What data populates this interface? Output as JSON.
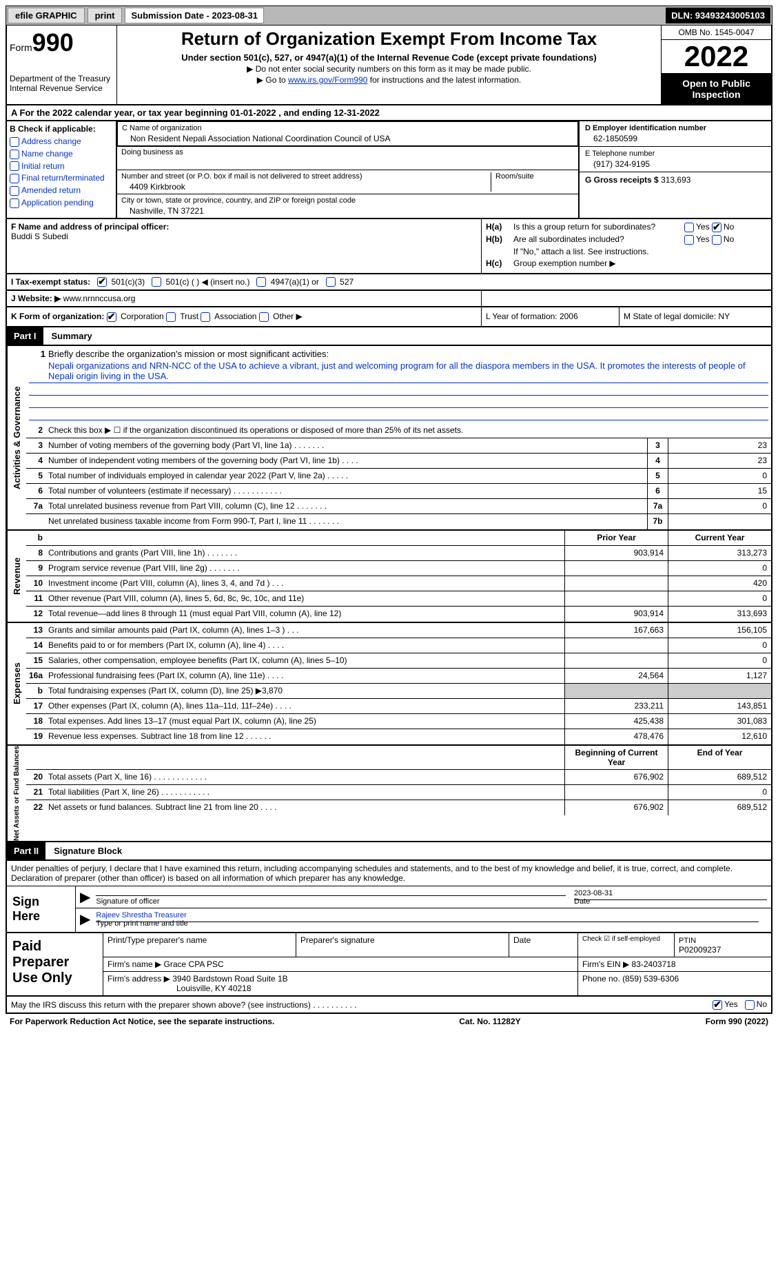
{
  "topbar": {
    "efile": "efile GRAPHIC",
    "print": "print",
    "submission_label": "Submission Date - 2023-08-31",
    "dln_label": "DLN: 93493243005103"
  },
  "header": {
    "form_prefix": "Form",
    "form_number": "990",
    "dept": "Department of the Treasury",
    "irs": "Internal Revenue Service",
    "title": "Return of Organization Exempt From Income Tax",
    "subtitle": "Under section 501(c), 527, or 4947(a)(1) of the Internal Revenue Code (except private foundations)",
    "note1": "▶ Do not enter social security numbers on this form as it may be made public.",
    "note2_pre": "▶ Go to ",
    "note2_link": "www.irs.gov/Form990",
    "note2_post": " for instructions and the latest information.",
    "omb": "OMB No. 1545-0047",
    "year": "2022",
    "open": "Open to Public Inspection"
  },
  "section_a": "A For the 2022 calendar year, or tax year beginning 01-01-2022    , and ending 12-31-2022",
  "col_b": {
    "label": "B Check if applicable:",
    "items": [
      "Address change",
      "Name change",
      "Initial return",
      "Final return/terminated",
      "Amended return",
      "Application pending"
    ]
  },
  "col_c": {
    "name_label": "C Name of organization",
    "name": "Non Resident Nepali Association National Coordination Council of USA",
    "dba_label": "Doing business as",
    "street_label": "Number and street (or P.O. box if mail is not delivered to street address)",
    "room_label": "Room/suite",
    "street": "4409 Kirkbrook",
    "city_label": "City or town, state or province, country, and ZIP or foreign postal code",
    "city": "Nashville, TN  37221"
  },
  "col_d": {
    "ein_label": "D Employer identification number",
    "ein": "62-1850599",
    "phone_label": "E Telephone number",
    "phone": "(917) 324-9195",
    "gross_label": "G Gross receipts $",
    "gross": "313,693"
  },
  "col_f": {
    "label": "F Name and address of principal officer:",
    "name": "Buddi S Subedi"
  },
  "col_h": {
    "ha_label": "H(a)",
    "ha_text": "Is this a group return for subordinates?",
    "hb_label": "H(b)",
    "hb_text": "Are all subordinates included?",
    "hb_note": "If \"No,\" attach a list. See instructions.",
    "hc_label": "H(c)",
    "hc_text": "Group exemption number ▶",
    "yes": "Yes",
    "no": "No"
  },
  "status": {
    "label": "I    Tax-exempt status:",
    "c3": "501(c)(3)",
    "c_other": "501(c) (   ) ◀ (insert no.)",
    "a1": "4947(a)(1) or",
    "s527": "527"
  },
  "website": {
    "label": "J   Website: ▶",
    "url": "www.nrnnccusa.org"
  },
  "klm": {
    "k_label": "K Form of organization:",
    "k_corp": "Corporation",
    "k_trust": "Trust",
    "k_assoc": "Association",
    "k_other": "Other ▶",
    "l": "L Year of formation: 2006",
    "m": "M State of legal domicile: NY"
  },
  "part1": {
    "header": "Part I",
    "title": "Summary"
  },
  "summary": {
    "line1_label": "Briefly describe the organization's mission or most significant activities:",
    "mission": "Nepali organizations and NRN-NCC of the USA to achieve a vibrant, just and welcoming program for all the diaspora members in the USA. It promotes the interests of people of Nepali origin living in the USA.",
    "line2": "Check this box ▶ ☐ if the organization discontinued its operations or disposed of more than 25% of its net assets.",
    "lines": [
      {
        "n": "3",
        "t": "Number of voting members of the governing body (Part VI, line 1a)   .    .    .    .    .    .    .",
        "b": "3",
        "v": "23"
      },
      {
        "n": "4",
        "t": "Number of independent voting members of the governing body (Part VI, line 1b)   .    .    .    .",
        "b": "4",
        "v": "23"
      },
      {
        "n": "5",
        "t": "Total number of individuals employed in calendar year 2022 (Part V, line 2a)   .    .    .    .    .",
        "b": "5",
        "v": "0"
      },
      {
        "n": "6",
        "t": "Total number of volunteers (estimate if necessary)    .    .    .    .    .    .    .    .    .    .    .",
        "b": "6",
        "v": "15"
      },
      {
        "n": "7a",
        "t": "Total unrelated business revenue from Part VIII, column (C), line 12   .    .    .    .    .    .    .",
        "b": "7a",
        "v": "0"
      },
      {
        "n": "",
        "t": "Net unrelated business taxable income from Form 990-T, Part I, line 11   .    .    .    .    .    .    .",
        "b": "7b",
        "v": ""
      }
    ],
    "prior_label": "Prior Year",
    "current_label": "Current Year",
    "revenue": [
      {
        "n": "8",
        "t": "Contributions and grants (Part VIII, line 1h)   .    .    .    .    .    .    .",
        "p": "903,914",
        "c": "313,273"
      },
      {
        "n": "9",
        "t": "Program service revenue (Part VIII, line 2g)   .    .    .    .    .    .    .",
        "p": "",
        "c": "0"
      },
      {
        "n": "10",
        "t": "Investment income (Part VIII, column (A), lines 3, 4, and 7d )   .    .    .",
        "p": "",
        "c": "420"
      },
      {
        "n": "11",
        "t": "Other revenue (Part VIII, column (A), lines 5, 6d, 8c, 9c, 10c, and 11e)",
        "p": "",
        "c": "0"
      },
      {
        "n": "12",
        "t": "Total revenue—add lines 8 through 11 (must equal Part VIII, column (A), line 12)",
        "p": "903,914",
        "c": "313,693"
      }
    ],
    "expenses": [
      {
        "n": "13",
        "t": "Grants and similar amounts paid (Part IX, column (A), lines 1–3 )   .    .    .",
        "p": "167,663",
        "c": "156,105"
      },
      {
        "n": "14",
        "t": "Benefits paid to or for members (Part IX, column (A), line 4)   .    .    .    .",
        "p": "",
        "c": "0"
      },
      {
        "n": "15",
        "t": "Salaries, other compensation, employee benefits (Part IX, column (A), lines 5–10)",
        "p": "",
        "c": "0"
      },
      {
        "n": "16a",
        "t": "Professional fundraising fees (Part IX, column (A), line 11e)   .    .    .    .",
        "p": "24,564",
        "c": "1,127"
      },
      {
        "n": "b",
        "t": "Total fundraising expenses (Part IX, column (D), line 25) ▶3,870",
        "p": "shaded",
        "c": "shaded"
      },
      {
        "n": "17",
        "t": "Other expenses (Part IX, column (A), lines 11a–11d, 11f–24e)   .    .    .    .",
        "p": "233,211",
        "c": "143,851"
      },
      {
        "n": "18",
        "t": "Total expenses. Add lines 13–17 (must equal Part IX, column (A), line 25)",
        "p": "425,438",
        "c": "301,083"
      },
      {
        "n": "19",
        "t": "Revenue less expenses. Subtract line 18 from line 12   .    .    .    .    .    .",
        "p": "478,476",
        "c": "12,610"
      }
    ],
    "begin_label": "Beginning of Current Year",
    "end_label": "End of Year",
    "netassets": [
      {
        "n": "20",
        "t": "Total assets (Part X, line 16)   .    .    .    .    .    .    .    .    .    .    .    .",
        "p": "676,902",
        "c": "689,512"
      },
      {
        "n": "21",
        "t": "Total liabilities (Part X, line 26)   .    .    .    .    .    .    .    .    .    .    .",
        "p": "",
        "c": "0"
      },
      {
        "n": "22",
        "t": "Net assets or fund balances. Subtract line 21 from line 20   .    .    .    .",
        "p": "676,902",
        "c": "689,512"
      }
    ],
    "vtabs": {
      "gov": "Activities & Governance",
      "rev": "Revenue",
      "exp": "Expenses",
      "net": "Net Assets or Fund Balances"
    }
  },
  "part2": {
    "header": "Part II",
    "title": "Signature Block",
    "declaration": "Under penalties of perjury, I declare that I have examined this return, including accompanying schedules and statements, and to the best of my knowledge and belief, it is true, correct, and complete. Declaration of preparer (other than officer) is based on all information of which preparer has any knowledge.",
    "sign_here": "Sign Here",
    "sig_officer": "Signature of officer",
    "date_label": "Date",
    "date": "2023-08-31",
    "name_title": "Rajeev Shrestha  Treasurer",
    "name_label": "Type or print name and title"
  },
  "preparer": {
    "label": "Paid Preparer Use Only",
    "print_name": "Print/Type preparer's name",
    "sig": "Preparer's signature",
    "date": "Date",
    "check_self": "Check ☑ if self-employed",
    "ptin_label": "PTIN",
    "ptin": "P02009237",
    "firm_name_label": "Firm's name    ▶",
    "firm_name": "Grace CPA PSC",
    "firm_ein_label": "Firm's EIN ▶",
    "firm_ein": "83-2403718",
    "firm_addr_label": "Firm's address ▶",
    "firm_addr1": "3940 Bardstown Road Suite 1B",
    "firm_addr2": "Louisville, KY  40218",
    "phone_label": "Phone no.",
    "phone": "(859) 539-6306"
  },
  "bottom": {
    "discuss": "May the IRS discuss this return with the preparer shown above? (see instructions)   .    .    .    .    .    .    .    .    .    .",
    "yes": "Yes",
    "no": "No"
  },
  "footer": {
    "left": "For Paperwork Reduction Act Notice, see the separate instructions.",
    "mid": "Cat. No. 11282Y",
    "right": "Form 990 (2022)"
  }
}
